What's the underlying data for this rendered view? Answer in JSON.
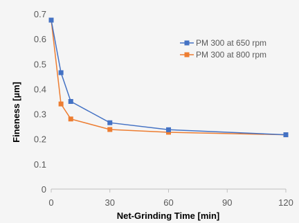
{
  "chart_data": {
    "type": "line",
    "xlabel": "Net-Grinding Time [min]",
    "ylabel": "Fineness [µm]",
    "xlim": [
      0,
      120
    ],
    "ylim": [
      0,
      0.7
    ],
    "xticks": [
      0,
      30,
      60,
      90,
      120
    ],
    "yticks": [
      0,
      0.1,
      0.2,
      0.3,
      0.4,
      0.5,
      0.6,
      0.7
    ],
    "xtick_labels": [
      "0",
      "30",
      "60",
      "90",
      "120"
    ],
    "ytick_labels": [
      "0",
      "0.1",
      "0.2",
      "0.3",
      "0.4",
      "0.5",
      "0.6",
      "0.7"
    ],
    "grid": false,
    "legend_position": "upper-right",
    "series": [
      {
        "name": "PM 300 at 650 rpm",
        "color": "#4472c4",
        "marker": "square",
        "x": [
          0,
          5,
          10,
          30,
          60,
          120
        ],
        "y": [
          0.675,
          0.465,
          0.35,
          0.265,
          0.237,
          0.217
        ]
      },
      {
        "name": "PM 300 at 800 rpm",
        "color": "#ed7d31",
        "marker": "square",
        "x": [
          0,
          5,
          10,
          30,
          60,
          120
        ],
        "y": [
          0.675,
          0.34,
          0.28,
          0.238,
          0.227,
          0.217
        ]
      }
    ]
  }
}
